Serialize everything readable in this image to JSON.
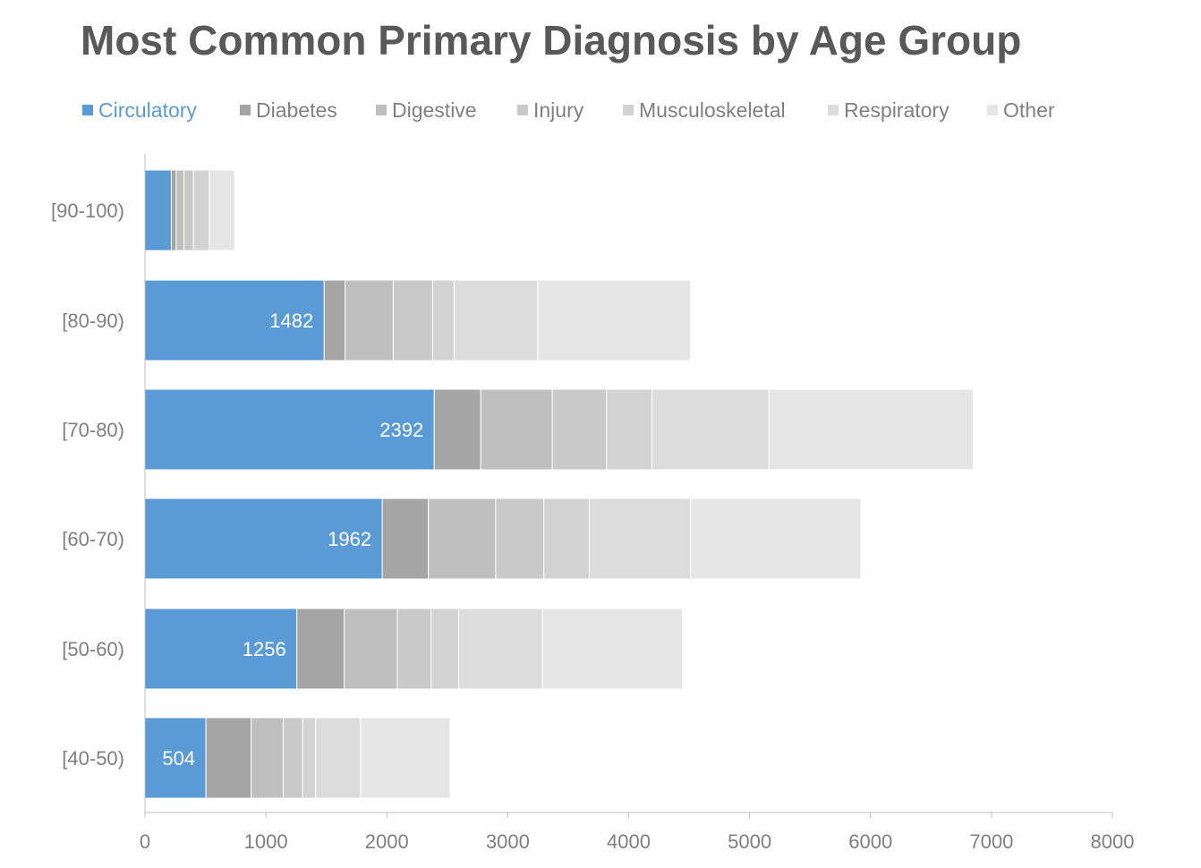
{
  "chart_data": {
    "type": "bar",
    "orientation": "horizontal",
    "stacked": true,
    "title": "Most Common Primary Diagnosis by Age Group",
    "categories": [
      "[40-50)",
      "[50-60)",
      "[60-70)",
      "[70-80)",
      "[80-90)",
      "[90-100)"
    ],
    "series": [
      {
        "name": "Circulatory",
        "color": "#5B9BD5",
        "values": [
          504,
          1256,
          1962,
          2392,
          1482,
          218
        ],
        "labels": [
          "504",
          "1256",
          "1962",
          "2392",
          "1482",
          ""
        ]
      },
      {
        "name": "Diabetes",
        "color": "#A5A5A5",
        "values": [
          374,
          391,
          382,
          385,
          173,
          40
        ]
      },
      {
        "name": "Digestive",
        "color": "#BFBFBF",
        "values": [
          265,
          440,
          556,
          591,
          398,
          65
        ]
      },
      {
        "name": "Injury",
        "color": "#C9C9C9",
        "values": [
          161,
          280,
          399,
          449,
          326,
          78
        ]
      },
      {
        "name": "Musculoskeletal",
        "color": "#D2D2D2",
        "values": [
          107,
          227,
          375,
          375,
          177,
          131
        ]
      },
      {
        "name": "Respiratory",
        "color": "#DCDCDC",
        "values": [
          372,
          693,
          837,
          967,
          692,
          0
        ]
      },
      {
        "name": "Other",
        "color": "#E6E6E6",
        "values": [
          741,
          1157,
          1409,
          1691,
          1263,
          210
        ]
      }
    ],
    "xlim": [
      0,
      8000
    ],
    "xticks": [
      "0",
      "1000",
      "2000",
      "3000",
      "4000",
      "5000",
      "6000",
      "7000",
      "8000"
    ],
    "xlabel": "",
    "ylabel": "",
    "grid": false,
    "legend_position": "top-left"
  }
}
